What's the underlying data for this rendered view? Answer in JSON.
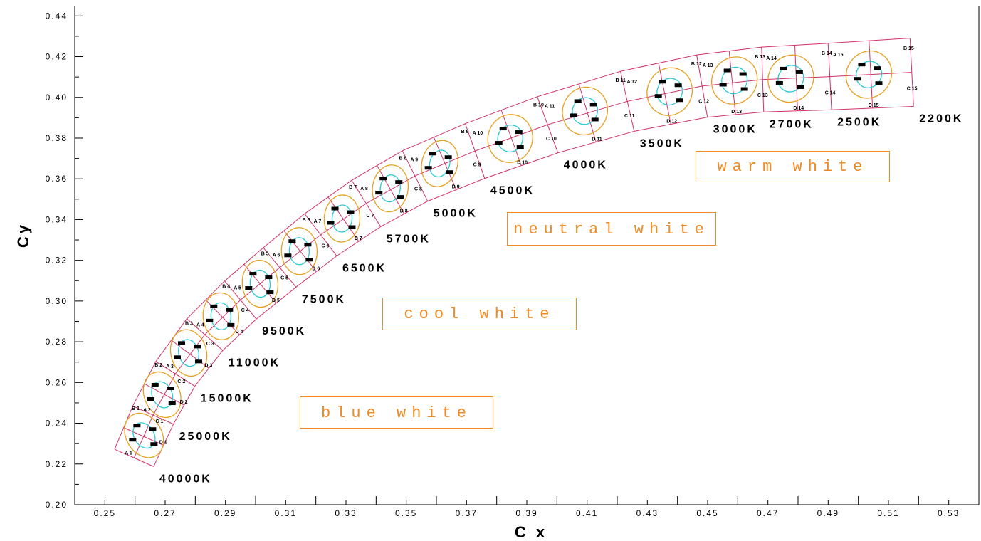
{
  "chart_data": {
    "type": "diagram",
    "xlabel": "C x",
    "ylabel": "Cy",
    "xlim": [
      0.24,
      0.54
    ],
    "ylim": [
      0.2,
      0.445
    ],
    "x_tick_labels": [
      "0.25",
      "0.27",
      "0.29",
      "0.31",
      "0.33",
      "0.35",
      "0.37",
      "0.39",
      "0.41",
      "0.43",
      "0.45",
      "0.47",
      "0.49",
      "0.51",
      "0.53"
    ],
    "y_tick_labels": [
      "0.20",
      "0.22",
      "0.24",
      "0.26",
      "0.28",
      "0.30",
      "0.32",
      "0.34",
      "0.36",
      "0.38",
      "0.40",
      "0.42",
      "0.44"
    ],
    "cct_labels": [
      "40000K",
      "25000K",
      "15000K",
      "11000K",
      "9500K",
      "7500K",
      "6500K",
      "5700K",
      "5000K",
      "4500K",
      "4000K",
      "3500K",
      "3000K",
      "2700K",
      "2500K",
      "2200K"
    ],
    "bins": [
      {
        "index": 1,
        "a": "A 1",
        "b": "B 1",
        "c": "C 1",
        "d": "D 1",
        "x": 0.263,
        "y": 0.234
      },
      {
        "index": 2,
        "a": "A 2",
        "b": "B 2",
        "c": "C 2",
        "d": "D 2",
        "x": 0.269,
        "y": 0.254
      },
      {
        "index": 3,
        "a": "A 3",
        "b": "B 3",
        "c": "C 3",
        "d": "D 3",
        "x": 0.2778,
        "y": 0.2745
      },
      {
        "index": 4,
        "a": "A 4",
        "b": "B 4",
        "c": "C 4",
        "d": "D 4",
        "x": 0.2885,
        "y": 0.2925
      },
      {
        "index": 5,
        "a": "A 5",
        "b": "B 5",
        "c": "C 5",
        "d": "D 5",
        "x": 0.3015,
        "y": 0.3085
      },
      {
        "index": 6,
        "a": "A 6",
        "b": "B 6",
        "c": "C 6",
        "d": "D 6",
        "x": 0.3145,
        "y": 0.3245
      },
      {
        "index": 7,
        "a": "A 7",
        "b": "B 7",
        "c": "C 7",
        "d": "D 7",
        "x": 0.3287,
        "y": 0.3405
      },
      {
        "index": 8,
        "a": "A 8",
        "b": "B 8",
        "c": "C 8",
        "d": "D 8",
        "x": 0.3447,
        "y": 0.3553
      },
      {
        "index": 9,
        "a": "A 9",
        "b": "B 9",
        "c": "C 9",
        "d": "D 9",
        "x": 0.3611,
        "y": 0.3675
      },
      {
        "index": 10,
        "a": "A 10",
        "b": "B 10",
        "c": "C 10",
        "d": "D 10",
        "x": 0.3845,
        "y": 0.3798
      },
      {
        "index": 11,
        "a": "A 11",
        "b": "B 11",
        "c": "C 11",
        "d": "D 11",
        "x": 0.4093,
        "y": 0.3933
      },
      {
        "index": 12,
        "a": "A 12",
        "b": "B 12",
        "c": "C 12",
        "d": "D 12",
        "x": 0.4374,
        "y": 0.4028
      },
      {
        "index": 13,
        "a": "A 13",
        "b": "B 13",
        "c": "C 13",
        "d": "D 13",
        "x": 0.4589,
        "y": 0.4083
      },
      {
        "index": 14,
        "a": "A 14",
        "b": "B 14",
        "c": "C 14",
        "d": "D 14",
        "x": 0.4776,
        "y": 0.4092
      },
      {
        "index": 15,
        "a": "A 15",
        "b": "B 15",
        "c": "C 15",
        "d": "D 15",
        "x": 0.5035,
        "y": 0.4112
      }
    ],
    "zones": [
      "blue white",
      "cool white",
      "neutral white",
      "warm white"
    ],
    "colors": {
      "bin_lines": "#d0336a",
      "outer_ellipse": "#e8a020",
      "inner_ellipse": "#29c8d8",
      "zone_text": "#f08a24"
    }
  }
}
